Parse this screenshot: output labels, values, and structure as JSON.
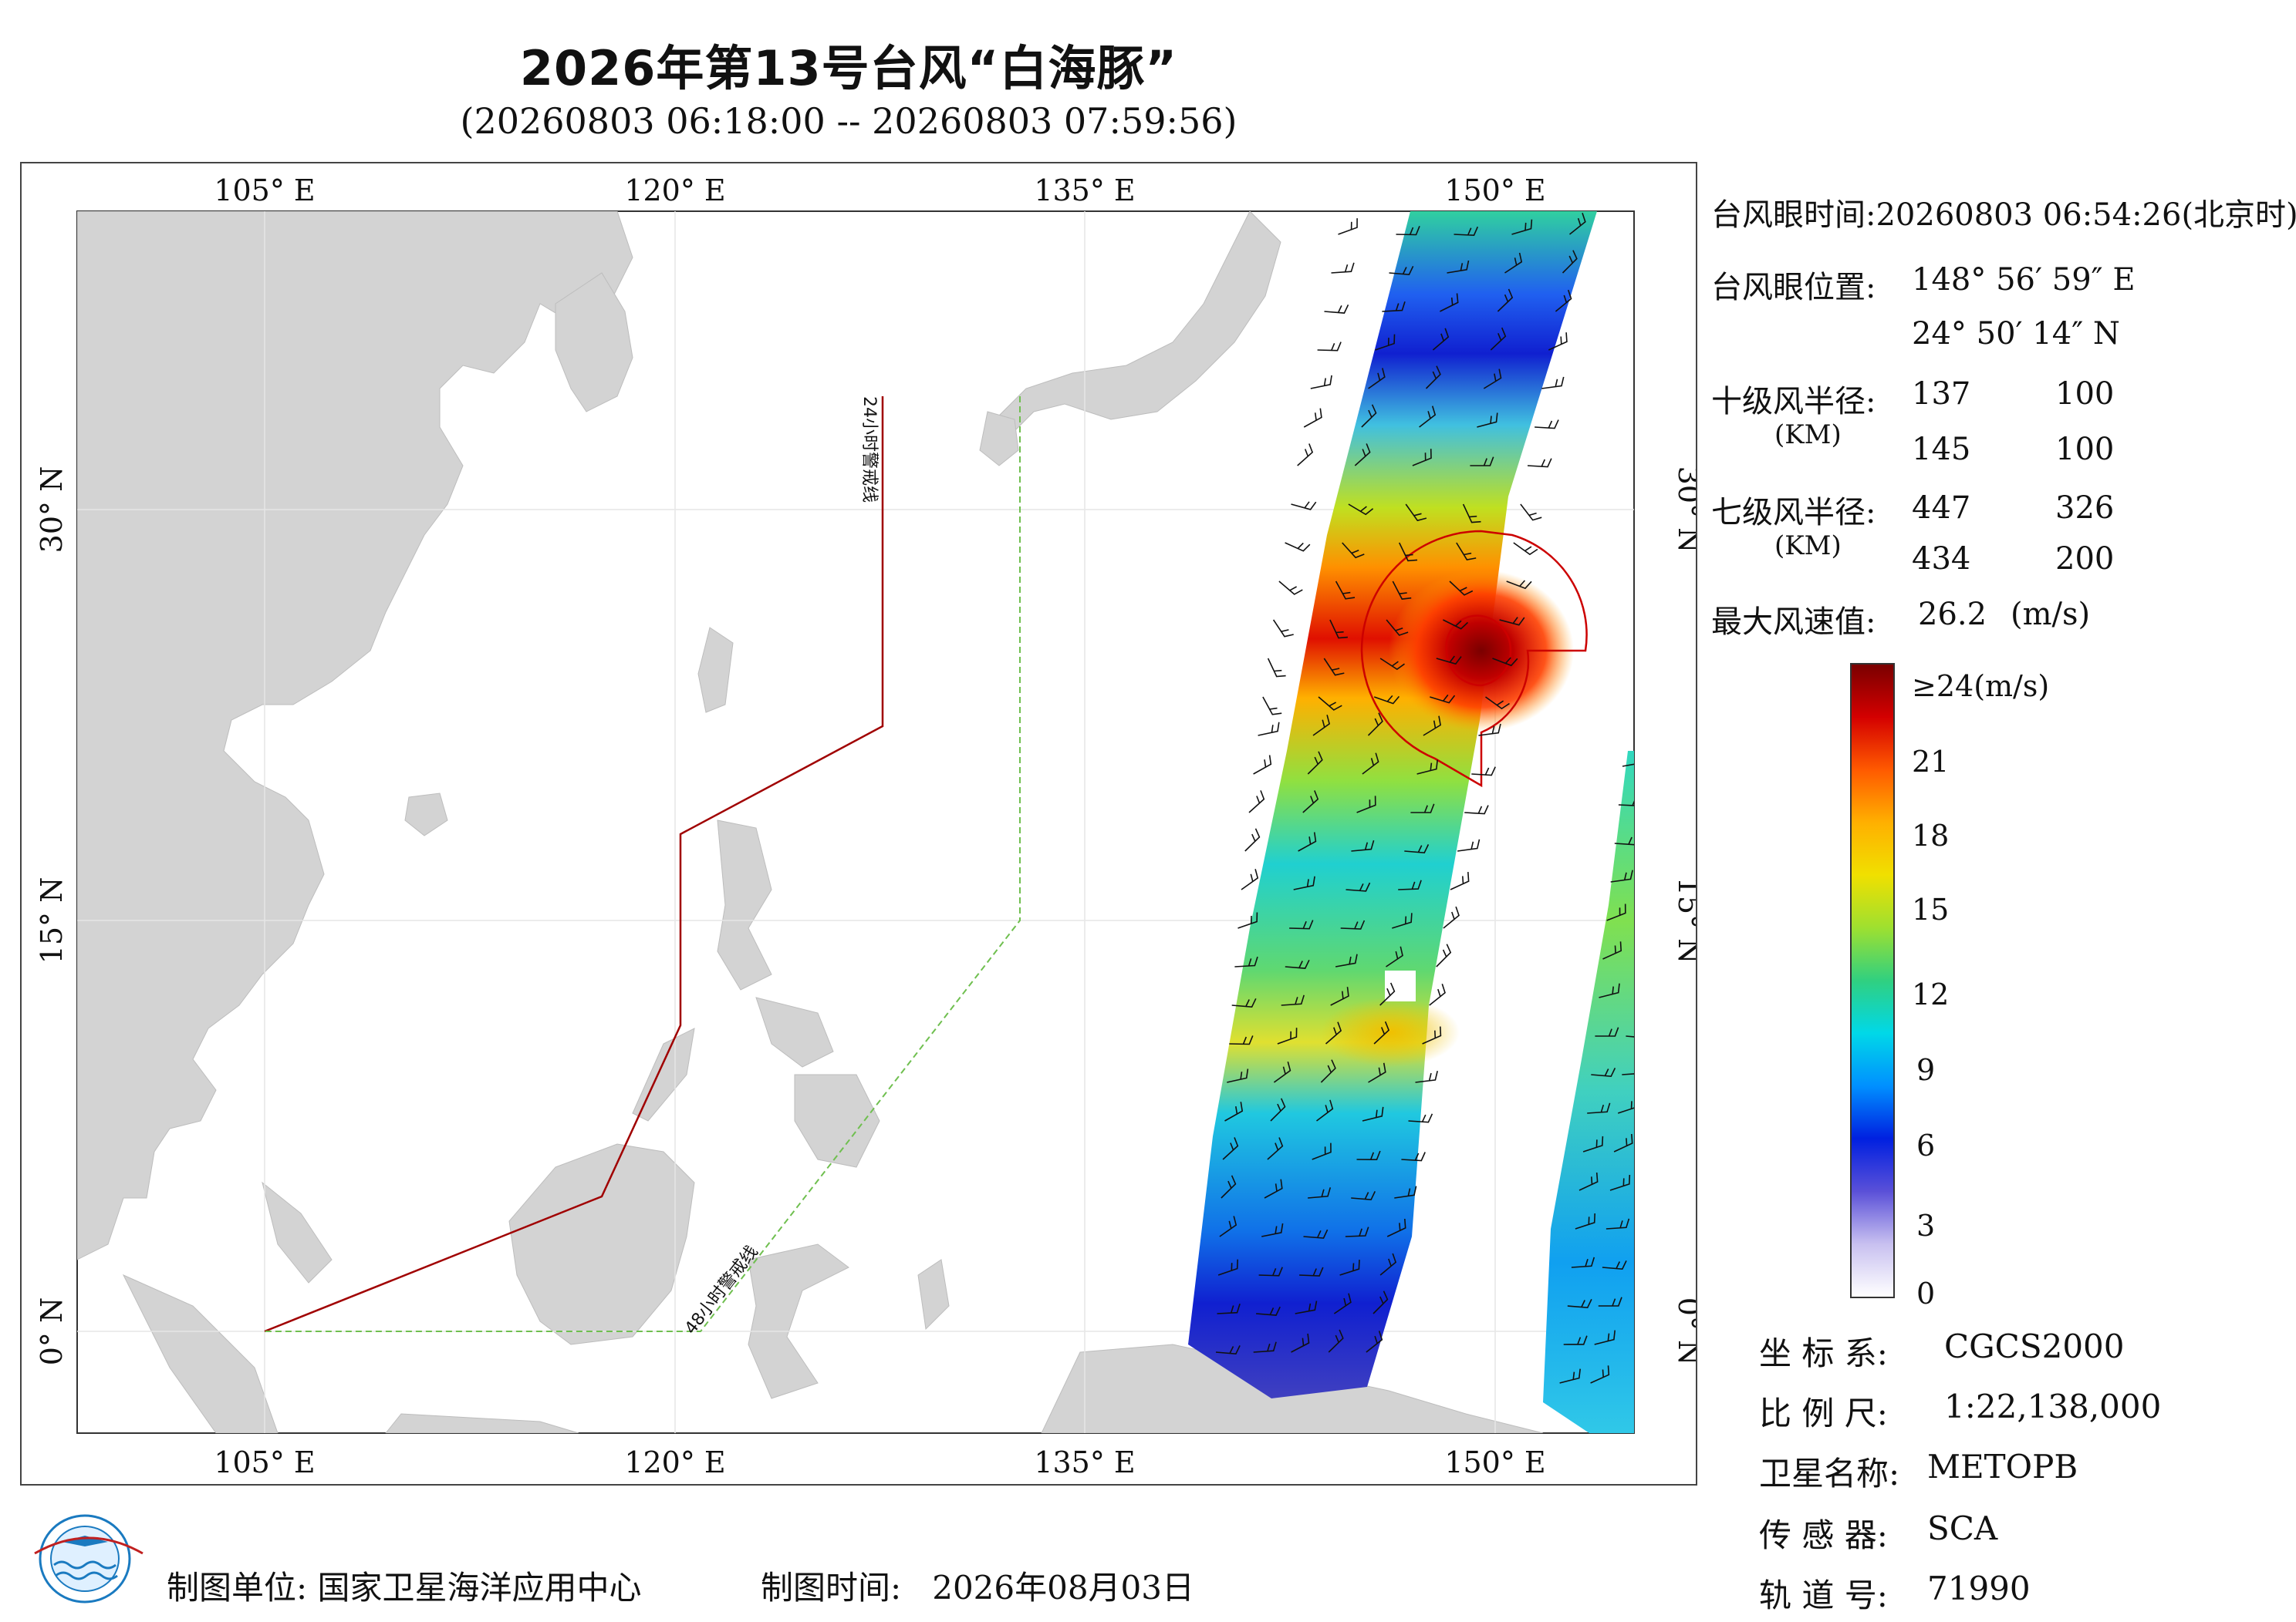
{
  "header": {
    "title": "2026年第13号台风“白海豚”",
    "subtitle": "(20260803 06:18:00 -- 20260803 07:59:56)"
  },
  "map": {
    "lon_ticks": [
      "105° E",
      "120° E",
      "135° E",
      "150° E"
    ],
    "lat_ticks": [
      "30° N",
      "15° N",
      "0° N"
    ],
    "line_24h_label": "24小时警戒线",
    "line_48h_label": "48小时警戒线",
    "colors": {
      "land": "#d3d3d3",
      "ocean": "#ffffff",
      "line_24h": "#a00000",
      "line_48h": "#6fbf4f",
      "wind_radius": "#cc0000"
    }
  },
  "typhoon_info": {
    "eye_time_label": "台风眼时间:",
    "eye_time": "20260803 06:54:26(北京时)",
    "eye_pos_label": "台风眼位置:",
    "eye_lon": "148° 56′ 59″ E",
    "eye_lat": "24° 50′ 14″ N",
    "r10_label": "十级风半径:",
    "r10_unit": "(KM)",
    "r10_row1": [
      "137",
      "100"
    ],
    "r10_row2": [
      "145",
      "100"
    ],
    "r7_label": "七级风半径:",
    "r7_unit": "(KM)",
    "r7_row1": [
      "447",
      "326"
    ],
    "r7_row2": [
      "434",
      "200"
    ],
    "max_label": "最大风速值:",
    "max_value": "26.2",
    "max_unit": "(m/s)"
  },
  "colorbar": {
    "labels": [
      "≥24(m/s)",
      "21",
      "18",
      "15",
      "12",
      "9",
      "6",
      "3",
      "0"
    ],
    "stops": [
      "#7a0000",
      "#d40000",
      "#ff5a00",
      "#ffb000",
      "#f0e000",
      "#9ee030",
      "#30d080",
      "#00d8e8",
      "#0090ff",
      "#0020e0",
      "#5a50d8",
      "#c8c0f0",
      "#ffffff"
    ]
  },
  "meta": {
    "crs_label": "坐 标 系:",
    "crs": "CGCS2000",
    "scale_label": "比 例 尺:",
    "scale": "1:22,138,000",
    "sat_label": "卫星名称:",
    "sat": "METOPB",
    "sensor_label": "传 感 器:",
    "sensor": "SCA",
    "orbit_label": "轨 道 号:",
    "orbit": "71990"
  },
  "footer": {
    "unit_label": "制图单位:",
    "unit": "国家卫星海洋应用中心",
    "time_label": "制图时间:",
    "time": "2026年08月03日"
  }
}
